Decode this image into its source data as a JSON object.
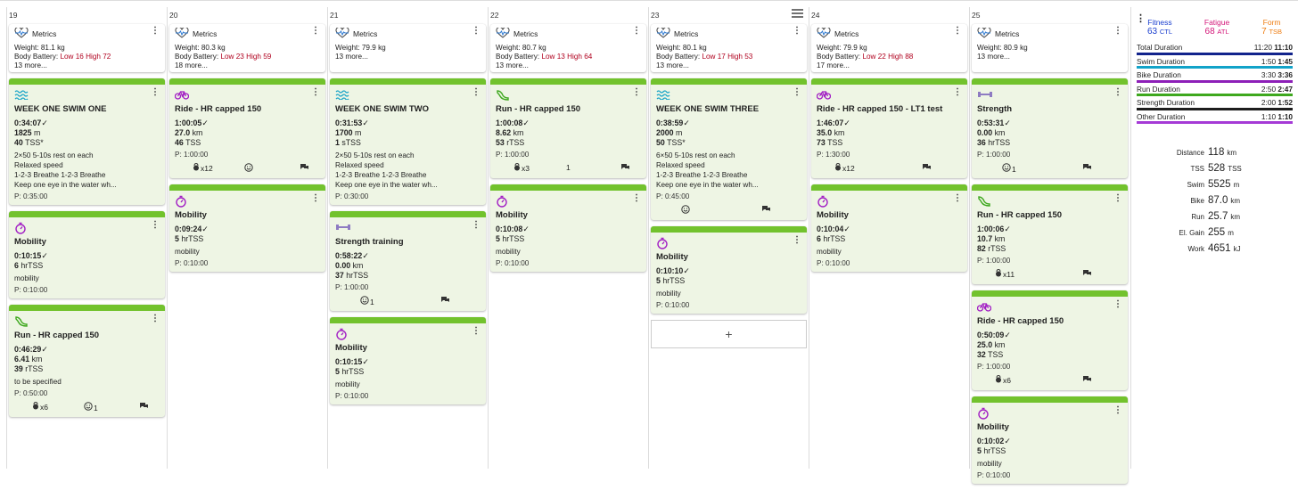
{
  "days": [
    {
      "num": "19",
      "metrics": {
        "title": "Metrics",
        "weight": "Weight: 81.1 kg",
        "bb_label": "Body Battery: ",
        "bb_value": "Low 16 High 72",
        "more": "13 more..."
      },
      "workouts": [
        {
          "icon": "swim",
          "title": "WEEK ONE SWIM ONE",
          "stats": [
            [
              "0:34:07",
              "✓"
            ],
            [
              "1825",
              " m"
            ],
            [
              "40",
              " TSS*"
            ]
          ],
          "desc": [
            "2×50 5-10s rest on each",
            "Relaxed speed",
            "1-2-3 Breathe 1-2-3 Breathe",
            "Keep one eye in the water wh..."
          ],
          "planned": "P: 0:35:00",
          "footer": []
        },
        {
          "icon": "timer",
          "title": "Mobility",
          "stats": [
            [
              "0:10:15",
              "✓"
            ],
            [
              "6",
              " hrTSS"
            ]
          ],
          "desc": [
            "mobility"
          ],
          "planned": "P: 0:10:00",
          "footer": []
        },
        {
          "icon": "run",
          "title": "Run - HR capped 150",
          "stats": [
            [
              "0:46:29",
              "✓"
            ],
            [
              "6.41",
              " km"
            ],
            [
              "39",
              " rTSS"
            ]
          ],
          "desc": [
            "to be specified"
          ],
          "planned": "P: 0:50:00",
          "footer": [
            {
              "t": "kettle",
              "x": "x6"
            },
            {
              "t": "face",
              "x": "1"
            },
            {
              "t": "chat",
              "x": ""
            }
          ]
        }
      ]
    },
    {
      "num": "20",
      "metrics": {
        "title": "Metrics",
        "weight": "Weight: 80.3 kg",
        "bb_label": "Body Battery: ",
        "bb_value": "Low 23 High 59",
        "more": "18 more..."
      },
      "workouts": [
        {
          "icon": "bike",
          "title": "Ride - HR capped 150",
          "stats": [
            [
              "1:00:05",
              "✓"
            ],
            [
              "27.0",
              " km"
            ],
            [
              "46",
              " TSS"
            ]
          ],
          "desc": [],
          "planned": "P: 1:00:00",
          "footer": [
            {
              "t": "kettle",
              "x": "x12"
            },
            {
              "t": "face",
              "x": ""
            },
            {
              "t": "chat",
              "x": ""
            }
          ]
        },
        {
          "icon": "timer",
          "title": "Mobility",
          "stats": [
            [
              "0:09:24",
              "✓"
            ],
            [
              "5",
              " hrTSS"
            ]
          ],
          "desc": [
            "mobility"
          ],
          "planned": "P: 0:10:00",
          "footer": []
        }
      ]
    },
    {
      "num": "21",
      "metrics": {
        "title": "Metrics",
        "weight": "Weight: 79.9 kg",
        "bb_label": "",
        "bb_value": "",
        "more": "13 more..."
      },
      "workouts": [
        {
          "icon": "swim",
          "title": "WEEK ONE SWIM TWO",
          "stats": [
            [
              "0:31:53",
              "✓"
            ],
            [
              "1700",
              " m"
            ],
            [
              "1",
              " sTSS"
            ]
          ],
          "desc": [
            "2×50 5-10s rest on each",
            "Relaxed speed",
            "1-2-3 Breathe 1-2-3 Breathe",
            "Keep one eye in the water wh..."
          ],
          "planned": "P: 0:30:00",
          "footer": []
        },
        {
          "icon": "dumbbell",
          "title": "Strength training",
          "stats": [
            [
              "0:58:22",
              "✓"
            ],
            [
              "0.00",
              " km"
            ],
            [
              "37",
              " hrTSS"
            ]
          ],
          "desc": [],
          "planned": "P: 1:00:00",
          "footer": [
            {
              "t": "face",
              "x": "1"
            },
            {
              "t": "chat",
              "x": ""
            }
          ]
        },
        {
          "icon": "timer",
          "title": "Mobility",
          "stats": [
            [
              "0:10:15",
              "✓"
            ],
            [
              "5",
              " hrTSS"
            ]
          ],
          "desc": [
            "mobility"
          ],
          "planned": "P: 0:10:00",
          "footer": []
        }
      ]
    },
    {
      "num": "22",
      "metrics": {
        "title": "Metrics",
        "weight": "Weight: 80.7 kg",
        "bb_label": "Body Battery: ",
        "bb_value": "Low 13 High 64",
        "more": "13 more..."
      },
      "workouts": [
        {
          "icon": "run",
          "title": "Run - HR capped 150",
          "stats": [
            [
              "1:00:08",
              "✓"
            ],
            [
              "8.62",
              " km"
            ],
            [
              "53",
              " rTSS"
            ]
          ],
          "desc": [],
          "planned": "P: 1:00:00",
          "footer": [
            {
              "t": "kettle",
              "x": "x3"
            },
            {
              "t": "num",
              "x": "1"
            },
            {
              "t": "chat",
              "x": ""
            }
          ]
        },
        {
          "icon": "timer",
          "title": "Mobility",
          "stats": [
            [
              "0:10:08",
              "✓"
            ],
            [
              "5",
              " hrTSS"
            ]
          ],
          "desc": [
            "mobility"
          ],
          "planned": "P: 0:10:00",
          "footer": []
        }
      ]
    },
    {
      "num": "23",
      "metrics": {
        "title": "Metrics",
        "weight": "Weight: 80.1 kg",
        "bb_label": "Body Battery: ",
        "bb_value": "Low 17 High 53",
        "more": "13 more..."
      },
      "workouts": [
        {
          "icon": "swim",
          "title": "WEEK ONE SWIM THREE",
          "stats": [
            [
              "0:38:59",
              "✓"
            ],
            [
              "2000",
              " m"
            ],
            [
              "50",
              " TSS*"
            ]
          ],
          "desc": [
            "6×50 5-10s rest on each",
            "Relaxed speed",
            "1-2-3 Breathe 1-2-3 Breathe",
            "Keep one eye in the water wh..."
          ],
          "planned": "P: 0:45:00",
          "footer": [
            {
              "t": "face",
              "x": ""
            },
            {
              "t": "chat",
              "x": ""
            }
          ]
        },
        {
          "icon": "timer",
          "title": "Mobility",
          "stats": [
            [
              "0:10:10",
              "✓"
            ],
            [
              "5",
              " hrTSS"
            ]
          ],
          "desc": [
            "mobility"
          ],
          "planned": "P: 0:10:00",
          "footer": []
        }
      ],
      "add": "+"
    },
    {
      "num": "24",
      "metrics": {
        "title": "Metrics",
        "weight": "Weight: 79.9 kg",
        "bb_label": "Body Battery: ",
        "bb_value": "Low 22 High 88",
        "more": "17 more..."
      },
      "workouts": [
        {
          "icon": "bike",
          "title": "Ride - HR capped 150 - LT1 test",
          "stats": [
            [
              "1:46:07",
              "✓"
            ],
            [
              "35.0",
              " km"
            ],
            [
              "73",
              " TSS"
            ]
          ],
          "desc": [],
          "planned": "P: 1:30:00",
          "footer": [
            {
              "t": "kettle",
              "x": "x12"
            },
            {
              "t": "chat",
              "x": ""
            }
          ]
        },
        {
          "icon": "timer",
          "title": "Mobility",
          "stats": [
            [
              "0:10:04",
              "✓"
            ],
            [
              "6",
              " hrTSS"
            ]
          ],
          "desc": [
            "mobility"
          ],
          "planned": "P: 0:10:00",
          "footer": []
        }
      ]
    },
    {
      "num": "25",
      "metrics": {
        "title": "Metrics",
        "weight": "Weight: 80.9 kg",
        "bb_label": "",
        "bb_value": "",
        "more": "13 more..."
      },
      "workouts": [
        {
          "icon": "dumbbell",
          "title": "Strength",
          "stats": [
            [
              "0:53:31",
              "✓"
            ],
            [
              "0.00",
              " km"
            ],
            [
              "36",
              " hrTSS"
            ]
          ],
          "desc": [],
          "planned": "P: 1:00:00",
          "footer": [
            {
              "t": "face",
              "x": "1"
            },
            {
              "t": "chat",
              "x": ""
            }
          ]
        },
        {
          "icon": "run",
          "title": "Run - HR capped 150",
          "stats": [
            [
              "1:00:06",
              "✓"
            ],
            [
              "10.7",
              " km"
            ],
            [
              "82",
              " rTSS"
            ]
          ],
          "desc": [],
          "planned": "P: 1:00:00",
          "footer": [
            {
              "t": "kettle",
              "x": "x11"
            },
            {
              "t": "chat",
              "x": ""
            }
          ]
        },
        {
          "icon": "bike",
          "title": "Ride - HR capped 150",
          "stats": [
            [
              "0:50:09",
              "✓"
            ],
            [
              "25.0",
              " km"
            ],
            [
              "32",
              " TSS"
            ]
          ],
          "desc": [],
          "planned": "P: 1:00:00",
          "footer": [
            {
              "t": "kettle",
              "x": "x6"
            },
            {
              "t": "chat",
              "x": ""
            }
          ]
        },
        {
          "icon": "timer",
          "title": "Mobility",
          "stats": [
            [
              "0:10:02",
              "✓"
            ],
            [
              "5",
              " hrTSS"
            ]
          ],
          "desc": [
            "mobility"
          ],
          "planned": "P: 0:10:00",
          "footer": []
        }
      ]
    }
  ],
  "summary": {
    "fitness": {
      "label": "Fitness",
      "value": "63",
      "unit": "CTL",
      "color": "#1b3fcf"
    },
    "fatigue": {
      "label": "Fatigue",
      "value": "68",
      "unit": "ATL",
      "color": "#d4187a"
    },
    "form": {
      "label": "Form",
      "value": "7",
      "unit": "TSB",
      "color": "#ef7d12"
    },
    "durations": [
      {
        "name": "Total Duration",
        "plan": "11:20",
        "actual": "11:10",
        "color": "#12238c"
      },
      {
        "name": "Swim Duration",
        "plan": "1:50",
        "actual": "1:45",
        "color": "#12a3c9"
      },
      {
        "name": "Bike Duration",
        "plan": "3:30",
        "actual": "3:36",
        "color": "#8d1fb8"
      },
      {
        "name": "Run Duration",
        "plan": "2:50",
        "actual": "2:47",
        "color": "#3ea81e"
      },
      {
        "name": "Strength Duration",
        "plan": "2:00",
        "actual": "1:52",
        "color": "#1d1d1d"
      },
      {
        "name": "Other Duration",
        "plan": "1:10",
        "actual": "1:10",
        "color": "#a53ad6"
      }
    ],
    "totals": [
      {
        "k": "Distance",
        "v": "118",
        "u": "km"
      },
      {
        "k": "TSS",
        "v": "528",
        "u": "TSS"
      },
      {
        "k": "Swim",
        "v": "5525",
        "u": "m"
      },
      {
        "k": "Bike",
        "v": "87.0",
        "u": "km"
      },
      {
        "k": "Run",
        "v": "25.7",
        "u": "km"
      },
      {
        "k": "El. Gain",
        "v": "255",
        "u": "m"
      },
      {
        "k": "Work",
        "v": "4651",
        "u": "kJ"
      }
    ]
  }
}
